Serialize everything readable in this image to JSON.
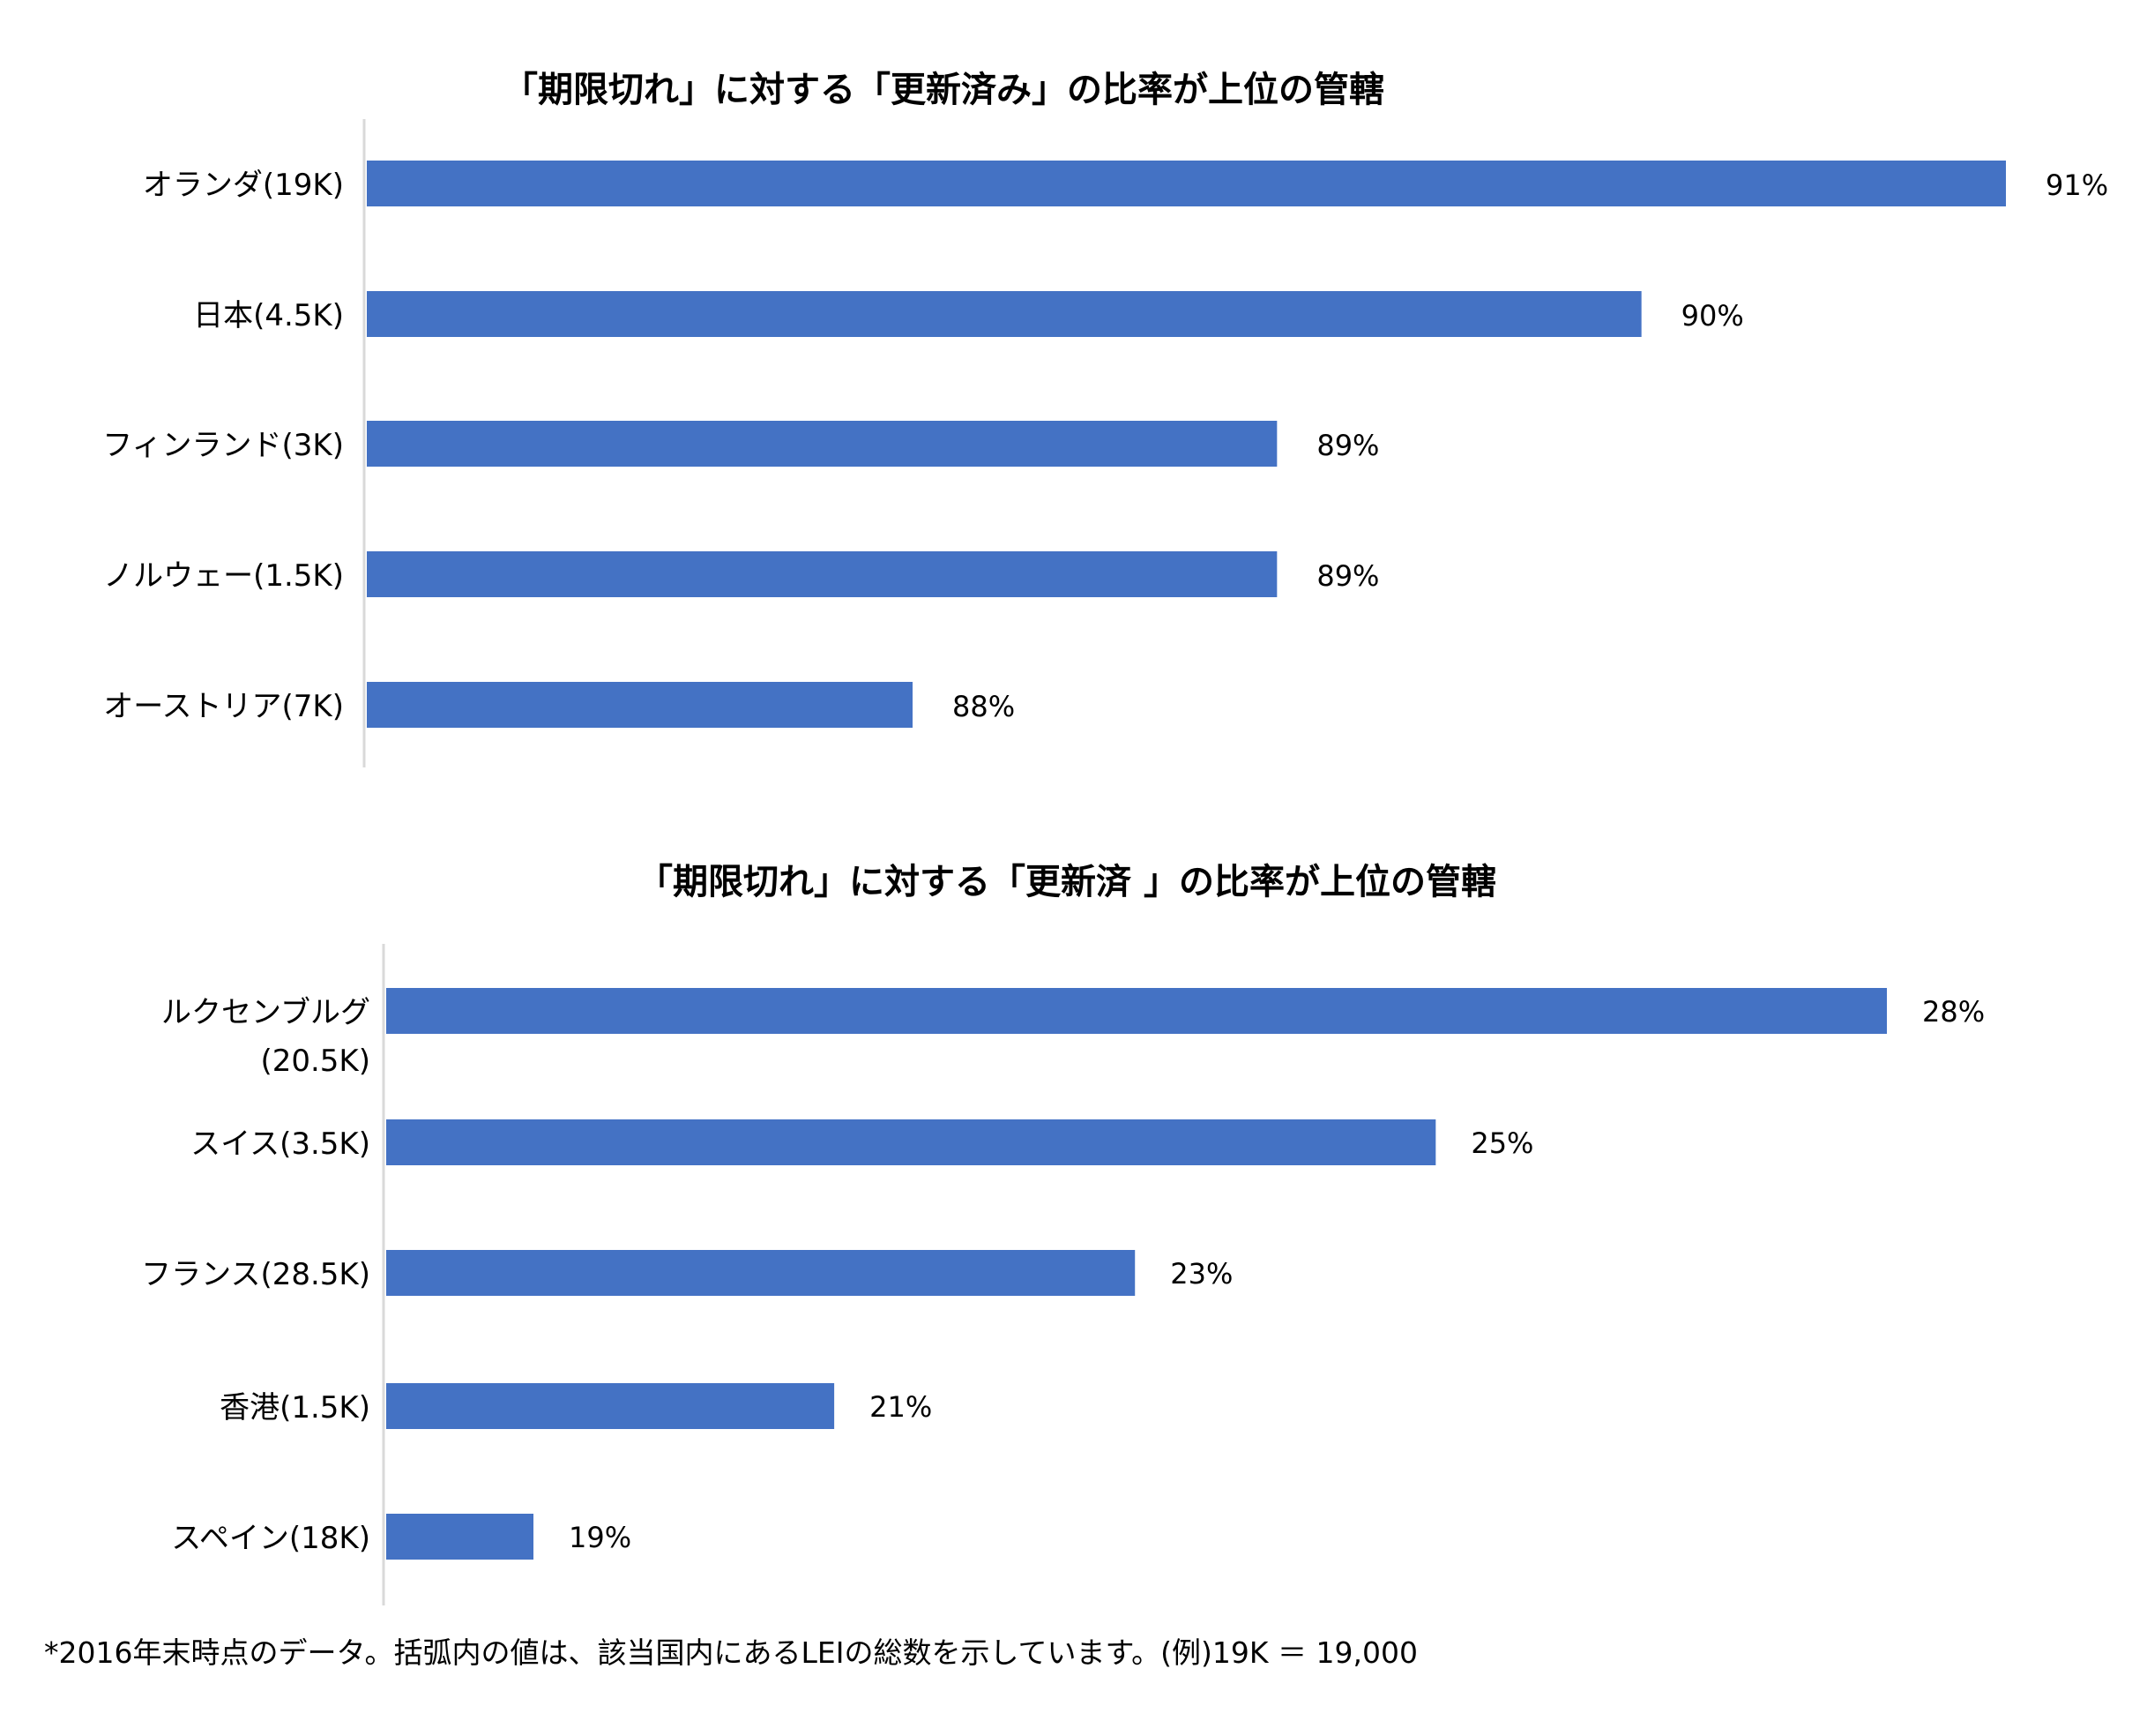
{
  "chart_data": [
    {
      "type": "bar",
      "orientation": "horizontal",
      "title": "「期限切れ」に対する「更新済み」の比率が上位の管轄",
      "categories": [
        "オランダ(19K)",
        "日本(4.5K)",
        "フィンランド(3K)",
        "ノルウェー(1.5K)",
        "オーストリア(7K)"
      ],
      "values": [
        91,
        90,
        89,
        89,
        88
      ],
      "value_labels": [
        "91%",
        "90%",
        "89%",
        "89%",
        "88%"
      ],
      "bar_color": "#4472C4",
      "grid": false,
      "legend": "none"
    },
    {
      "type": "bar",
      "orientation": "horizontal",
      "title": "「期限切れ」に対する「更新済 」の比率が上位の管轄",
      "categories": [
        "ルクセンブルグ (20.5K)",
        "スイス(3.5K)",
        "フランス(28.5K)",
        "香港(1.5K)",
        "スペイン(18K)"
      ],
      "category_lines": [
        [
          "ルクセンブルグ",
          "(20.5K)"
        ],
        [
          "スイス(3.5K)"
        ],
        [
          "フランス(28.5K)"
        ],
        [
          "香港(1.5K)"
        ],
        [
          "スペイン(18K)"
        ]
      ],
      "values": [
        28,
        25,
        23,
        21,
        19
      ],
      "value_labels": [
        "28%",
        "25%",
        "23%",
        "21%",
        "19%"
      ],
      "bar_color": "#4472C4",
      "grid": false,
      "legend": "none"
    }
  ],
  "footnote": "*2016年末時点のデータ。括弧内の値は、該当国内にあるLEIの総数を示しています。(例)19K ＝ 19,000"
}
